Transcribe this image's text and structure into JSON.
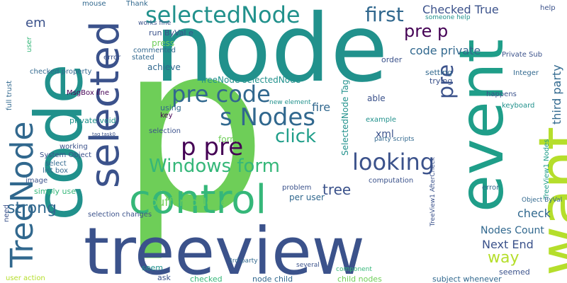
{
  "palette": {
    "dark_purple": "#440154",
    "indigo": "#3b528b",
    "blue": "#31688e",
    "teal": "#21918c",
    "sea_green": "#1f9e89",
    "green": "#35b779",
    "light_green": "#6ece58",
    "lime": "#b5de2b",
    "yellow": "#e5e419"
  },
  "words": [
    "p",
    "node",
    "treeview",
    "code",
    "event",
    "want",
    "control",
    "selected",
    "TreeNode",
    "selectedNode",
    "pre code",
    "s Nodes",
    "p pre",
    "Windows form",
    "looking",
    "first",
    "pre p",
    "Checked True",
    "strong",
    "tree",
    "code private",
    "way",
    "click",
    "pre",
    "bufferedNode",
    "third party",
    "Next End",
    "Nodes Count",
    "check",
    "help",
    "em",
    "fire",
    "SelectedNode Tag",
    "TreeNode selectedNode",
    "achieve",
    "works fine",
    "run ByVal e",
    "press",
    "commented",
    "stated",
    "error",
    "Private Sub",
    "Integer",
    "keyboard",
    "happens",
    "setting",
    "trying",
    "order",
    "able",
    "example",
    "xml",
    "party scripts",
    "form",
    "per user",
    "problem",
    "computation",
    "error",
    "using",
    "key",
    "selection",
    "private void",
    "tag task0",
    "full trust",
    "list box",
    "simply use",
    "selection changes",
    "MsgBox line",
    "System Object",
    "select",
    "working",
    "image",
    "need",
    "user action",
    "seem",
    "ask",
    "checked",
    "node child",
    "child nodes",
    "subject whenever",
    "seemed",
    "mouse",
    "Thank",
    "someone help",
    "checked property",
    "new element",
    "TreeView1 Nodes",
    "Object ByVal",
    "TreeView1 AfterCheck",
    "3rd party",
    "several",
    "component",
    "user"
  ]
}
